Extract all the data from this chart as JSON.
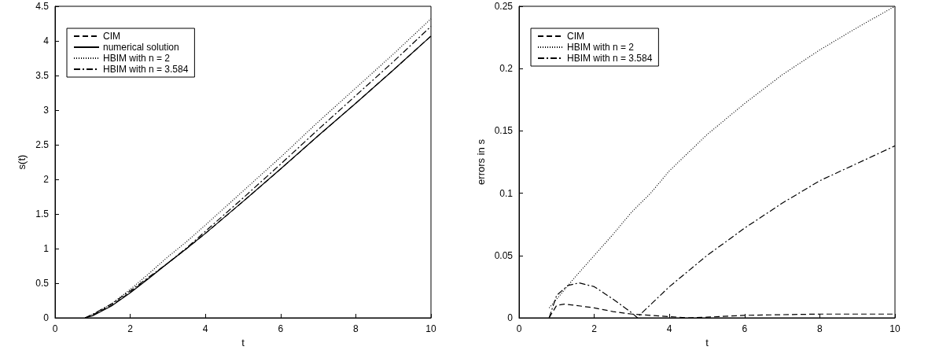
{
  "chart_data": [
    {
      "type": "line",
      "xlabel": "t",
      "ylabel": "s(t)",
      "xlim": [
        0,
        10
      ],
      "xticks": [
        0,
        2,
        4,
        6,
        8,
        10
      ],
      "ylim": [
        0,
        4.5
      ],
      "yticks": [
        0,
        0.5,
        1,
        1.5,
        2,
        2.5,
        3,
        3.5,
        4,
        4.5
      ],
      "legend": "top left",
      "marker": "none",
      "grid": false,
      "x": [
        0.8,
        1,
        1.5,
        2,
        2.5,
        3,
        3.5,
        4,
        5,
        6,
        7,
        8,
        9,
        10
      ],
      "series": [
        {
          "name": "CIM",
          "color": "#000000",
          "line_style": "dashed",
          "values": [
            0,
            0.04,
            0.18,
            0.37,
            0.58,
            0.79,
            1.0,
            1.22,
            1.68,
            2.15,
            2.63,
            3.1,
            3.58,
            4.07
          ]
        },
        {
          "name": "numerical solution",
          "color": "#000000",
          "line_style": "solid",
          "values": [
            0,
            0.03,
            0.17,
            0.36,
            0.57,
            0.79,
            1.0,
            1.22,
            1.68,
            2.15,
            2.63,
            3.1,
            3.58,
            4.07
          ]
        },
        {
          "name": "HBIM with n = 2",
          "color": "#000000",
          "line_style": "dotted",
          "values": [
            0,
            0.05,
            0.2,
            0.41,
            0.64,
            0.88,
            1.1,
            1.34,
            1.83,
            2.32,
            2.83,
            3.32,
            3.81,
            4.32
          ]
        },
        {
          "name": "HBIM with n = 3.584",
          "color": "#000000",
          "line_style": "dashdot",
          "values": [
            0,
            0.05,
            0.2,
            0.39,
            0.59,
            0.79,
            1.01,
            1.25,
            1.73,
            2.22,
            2.72,
            3.21,
            3.7,
            4.21
          ]
        }
      ]
    },
    {
      "type": "line",
      "xlabel": "t",
      "ylabel": "errors in s",
      "xlim": [
        0,
        10
      ],
      "xticks": [
        0,
        2,
        4,
        6,
        8,
        10
      ],
      "ylim": [
        0,
        0.25
      ],
      "yticks": [
        0,
        0.05,
        0.1,
        0.15,
        0.2,
        0.25
      ],
      "legend": "top left",
      "marker": "none",
      "grid": false,
      "series": [
        {
          "name": "CIM",
          "color": "#000000",
          "line_style": "dashed",
          "x": [
            0.8,
            1,
            1.2,
            1.5,
            2,
            2.5,
            3,
            3.5,
            4,
            4.5,
            5,
            6,
            7,
            8,
            9,
            10
          ],
          "values": [
            0,
            0.01,
            0.011,
            0.01,
            0.008,
            0.005,
            0.003,
            0.002,
            0.001,
            0,
            0.0005,
            0.002,
            0.0025,
            0.003,
            0.003,
            0.003
          ]
        },
        {
          "name": "HBIM with n = 2",
          "color": "#000000",
          "line_style": "dotted",
          "x": [
            0.8,
            1,
            1.5,
            2,
            2.5,
            3,
            3.5,
            4,
            5,
            6,
            7,
            8,
            9,
            10
          ],
          "values": [
            0.008,
            0.015,
            0.033,
            0.05,
            0.067,
            0.085,
            0.1,
            0.118,
            0.147,
            0.172,
            0.195,
            0.215,
            0.233,
            0.25
          ]
        },
        {
          "name": "HBIM with n = 3.584",
          "color": "#000000",
          "line_style": "dashdot",
          "x": [
            0.8,
            1,
            1.3,
            1.6,
            2,
            2.5,
            3,
            3.15,
            3.2,
            4,
            5,
            6,
            7,
            8,
            9,
            10
          ],
          "values": [
            0,
            0.018,
            0.026,
            0.028,
            0.025,
            0.015,
            0.004,
            0,
            0.002,
            0.025,
            0.05,
            0.072,
            0.092,
            0.11,
            0.124,
            0.138
          ]
        }
      ]
    }
  ]
}
